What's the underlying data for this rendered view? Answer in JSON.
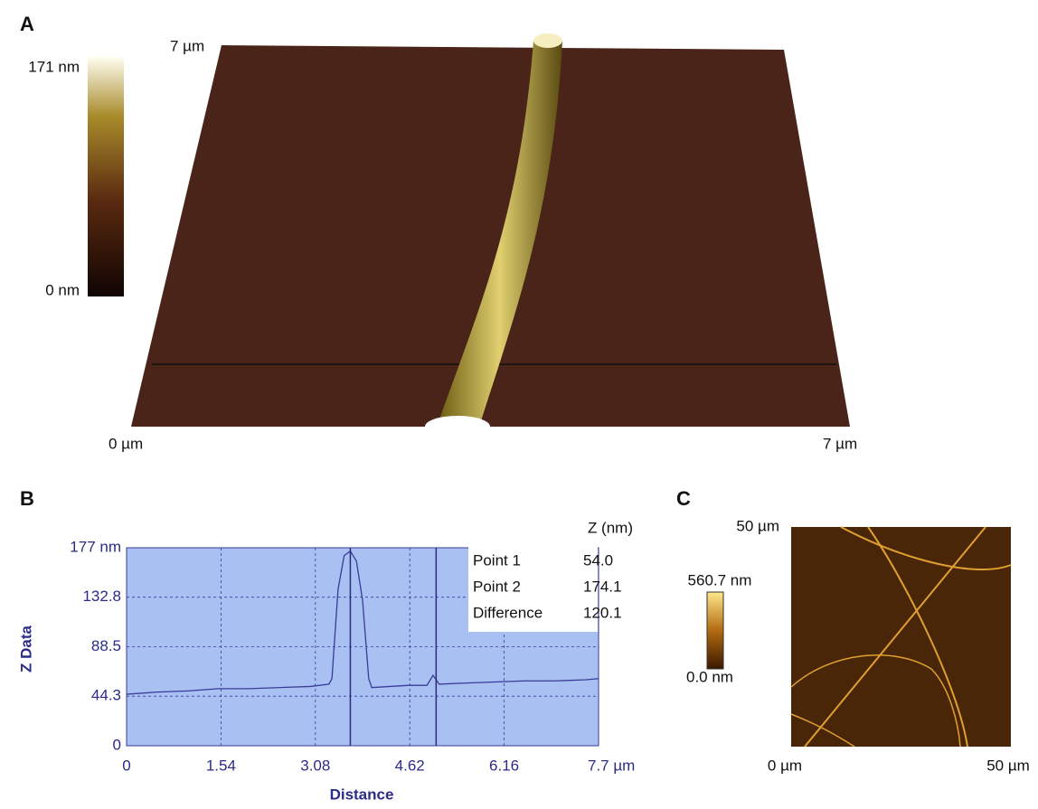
{
  "panel_a": {
    "label": "A",
    "colorbar_max": "171 nm",
    "colorbar_min": "0 nm",
    "y_axis_label": "7 µm",
    "x_start": "0 µm",
    "x_end": "7 µm"
  },
  "chart_data": {
    "type": "line",
    "label": "B",
    "xlabel": "Distance",
    "ylabel": "Z Data",
    "x": [
      0,
      0.5,
      1,
      1.5,
      2,
      2.5,
      3,
      3.3,
      3.35,
      3.45,
      3.55,
      3.65,
      3.75,
      3.85,
      3.95,
      4.0,
      4.3,
      4.6,
      4.9,
      5.0,
      5.1,
      5.5,
      6,
      6.5,
      7,
      7.5,
      7.7
    ],
    "series": [
      {
        "color": "#3a3a9a",
        "values": [
          46,
          48,
          49,
          51,
          51,
          52,
          53,
          55,
          60,
          140,
          170,
          174,
          165,
          130,
          60,
          52,
          53,
          54,
          54,
          63,
          55,
          56,
          57,
          58,
          58,
          59,
          60
        ]
      }
    ],
    "cursors": [
      3.65,
      5.05
    ],
    "xlim": [
      0,
      7.7
    ],
    "ylim": [
      0,
      177
    ],
    "xticks": [
      0,
      1.54,
      3.08,
      4.62,
      6.16,
      {
        "value": 7.7,
        "label": "7.7 µm"
      }
    ],
    "yticks": [
      0,
      44.3,
      88.5,
      132.8,
      {
        "value": 177,
        "label": "177 nm"
      }
    ],
    "grid": true,
    "table": {
      "header": "Z (nm)",
      "rows": [
        [
          "Point 1",
          "54.0"
        ],
        [
          "Point 2",
          "174.1"
        ],
        [
          "Difference",
          "120.1"
        ]
      ]
    }
  },
  "panel_c": {
    "label": "C",
    "colorbar_max": "560.7 nm",
    "colorbar_min": "0.0 nm",
    "y_axis_label": "50 µm",
    "x_start": "0 µm",
    "x_end": "50 µm"
  }
}
